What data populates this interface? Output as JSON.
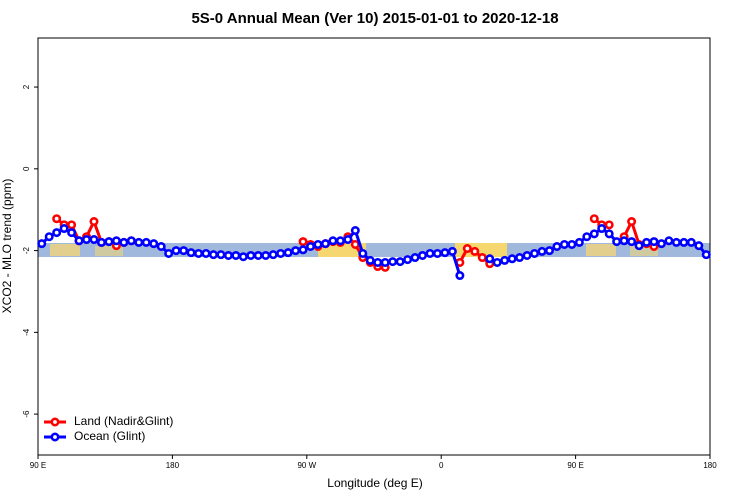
{
  "chart_data": {
    "type": "line",
    "title": "5S-0 Annual Mean (Ver 10)   2015-01-01 to 2020-12-18",
    "x_label": "Longitude (deg E)",
    "y_label": "XCO2 - MLO trend (ppm)",
    "xlim": [
      90,
      540
    ],
    "ylim": [
      -7.0,
      3.2
    ],
    "xticks": [
      {
        "value": 90,
        "label": "90 E"
      },
      {
        "value": 180,
        "label": "180"
      },
      {
        "value": 270,
        "label": "90 W"
      },
      {
        "value": 360,
        "label": "0"
      },
      {
        "value": 450,
        "label": "90 E"
      },
      {
        "value": 540,
        "label": "180"
      }
    ],
    "yticks": [
      -6,
      -4,
      -2,
      0,
      2
    ],
    "legend": "bottom-left",
    "x": [
      92.5,
      97.5,
      102.5,
      107.5,
      112.5,
      117.5,
      122.5,
      127.5,
      132.5,
      137.5,
      142.5,
      147.5,
      152.5,
      157.5,
      162.5,
      167.5,
      172.5,
      177.5,
      182.5,
      187.5,
      192.5,
      197.5,
      202.5,
      207.5,
      212.5,
      217.5,
      222.5,
      227.5,
      232.5,
      237.5,
      242.5,
      247.5,
      252.5,
      257.5,
      262.5,
      267.5,
      272.5,
      277.5,
      282.5,
      287.5,
      292.5,
      297.5,
      302.5,
      307.5,
      312.5,
      317.5,
      322.5,
      327.5,
      332.5,
      337.5,
      342.5,
      347.5,
      352.5,
      357.5,
      362.5,
      367.5,
      372.5,
      377.5,
      382.5,
      387.5,
      392.5,
      397.5,
      402.5,
      407.5,
      412.5,
      417.5,
      422.5,
      427.5,
      432.5,
      437.5,
      442.5,
      447.5,
      452.5,
      457.5,
      462.5,
      467.5,
      472.5,
      477.5,
      482.5,
      487.5,
      492.5,
      497.5,
      502.5,
      507.5,
      512.5,
      517.5,
      522.5,
      527.5,
      532.5,
      537.5
    ],
    "series": [
      {
        "name": "Land (Nadir&Glint)",
        "color": "#ff0000",
        "values": [
          null,
          null,
          -1.22,
          -1.37,
          -1.37,
          -1.76,
          -1.66,
          -1.29,
          -1.8,
          -1.78,
          -1.88,
          -1.8,
          -1.76,
          null,
          null,
          null,
          null,
          null,
          null,
          null,
          null,
          null,
          null,
          null,
          null,
          null,
          null,
          null,
          null,
          null,
          null,
          null,
          null,
          null,
          null,
          -1.78,
          -1.85,
          -1.9,
          -1.83,
          -1.78,
          -1.8,
          -1.66,
          -1.85,
          -2.17,
          -2.29,
          -2.39,
          -2.41,
          null,
          null,
          null,
          null,
          null,
          null,
          null,
          null,
          null,
          -2.29,
          -1.95,
          -2.02,
          -2.17,
          -2.32,
          null,
          null,
          null,
          null,
          null,
          null,
          null,
          null,
          null,
          null,
          null,
          null,
          null,
          -1.22,
          -1.37,
          -1.37,
          null,
          -1.66,
          -1.29,
          -1.85,
          -1.83,
          -1.9,
          null,
          null,
          null,
          null,
          null,
          null,
          null
        ]
      },
      {
        "name": "Ocean (Glint)",
        "color": "#0000ff",
        "values": [
          -1.83,
          -1.66,
          -1.56,
          -1.46,
          -1.56,
          -1.76,
          -1.73,
          -1.73,
          -1.8,
          -1.78,
          -1.76,
          -1.8,
          -1.76,
          -1.8,
          -1.8,
          -1.83,
          -1.9,
          -2.07,
          -2.0,
          -2.0,
          -2.05,
          -2.07,
          -2.07,
          -2.1,
          -2.1,
          -2.12,
          -2.12,
          -2.15,
          -2.12,
          -2.12,
          -2.12,
          -2.1,
          -2.07,
          -2.05,
          -2.0,
          -1.98,
          -1.9,
          -1.85,
          -1.83,
          -1.76,
          -1.76,
          -1.73,
          -1.51,
          -2.07,
          -2.24,
          -2.29,
          -2.29,
          -2.27,
          -2.27,
          -2.22,
          -2.17,
          -2.12,
          -2.07,
          -2.07,
          -2.05,
          -2.02,
          -2.61,
          null,
          null,
          null,
          -2.2,
          -2.29,
          -2.24,
          -2.2,
          -2.17,
          -2.12,
          -2.07,
          -2.02,
          -2.0,
          -1.9,
          -1.85,
          -1.85,
          -1.8,
          -1.66,
          -1.59,
          -1.46,
          -1.59,
          -1.78,
          -1.76,
          -1.78,
          -1.88,
          -1.8,
          -1.78,
          -1.83,
          -1.76,
          -1.8,
          -1.8,
          -1.8,
          -1.88,
          -2.1
        ]
      }
    ]
  }
}
